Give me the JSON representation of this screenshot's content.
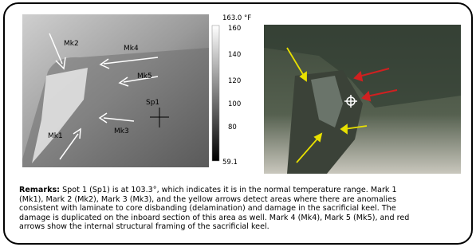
{
  "thermal": {
    "scale_max": "163.0 °F",
    "scale_ticks": [
      "160",
      "140",
      "120",
      "100",
      "80"
    ],
    "scale_min": "59.1",
    "labels": [
      "Mk2",
      "Mk4",
      "Mk5",
      "Sp1",
      "Mk3",
      "Mk1"
    ]
  },
  "remarks": {
    "label": "Remarks:",
    "lines": [
      " Spot 1 (Sp1) is at 103.3°, which indicates it is in the normal temperature range.  Mark 1",
      "(Mk1), Mark 2 (Mk2), Mark 3 (Mk3), and the yellow arrows detect areas where there are anomalies",
      "consistent with laminate to core disbanding (delamination) and damage in the sacrificial keel.  The",
      "damage is duplicated on the inboard section of this area as well.  Mark 4 (Mk4), Mark 5 (Mk5), and red",
      "arrows show the internal structural framing of the sacrificial keel."
    ]
  }
}
